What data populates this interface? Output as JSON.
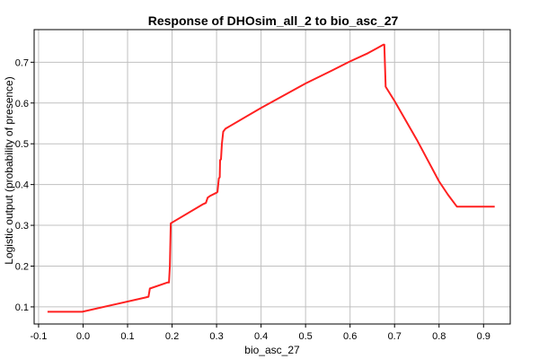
{
  "chart_data": {
    "type": "line",
    "title": "Response of DHOsim_all_2 to bio_asc_27",
    "xlabel": "bio_asc_27",
    "ylabel": "Logistic output (probability of presence)",
    "xlim": [
      -0.11,
      0.96
    ],
    "ylim": [
      0.058,
      0.78
    ],
    "xticks": [
      -0.1,
      0.0,
      0.1,
      0.2,
      0.3,
      0.4,
      0.5,
      0.6,
      0.7,
      0.8,
      0.9
    ],
    "xtick_labels": [
      "-0.1",
      "0.0",
      "0.1",
      "0.2",
      "0.3",
      "0.4",
      "0.5",
      "0.6",
      "0.7",
      "0.8",
      "0.9"
    ],
    "yticks": [
      0.1,
      0.2,
      0.3,
      0.4,
      0.5,
      0.6,
      0.7
    ],
    "ytick_labels": [
      "0.1",
      "0.2",
      "0.3",
      "0.4",
      "0.5",
      "0.6",
      "0.7"
    ],
    "grid": true,
    "series": [
      {
        "color": "#ff2020",
        "x": [
          -0.08,
          -0.002,
          0.14,
          0.147,
          0.149,
          0.15,
          0.19,
          0.193,
          0.195,
          0.197,
          0.27,
          0.276,
          0.28,
          0.285,
          0.3,
          0.302,
          0.305,
          0.307,
          0.308,
          0.31,
          0.312,
          0.315,
          0.32,
          0.4,
          0.5,
          0.56,
          0.6,
          0.64,
          0.66,
          0.675,
          0.677,
          0.68,
          0.7,
          0.75,
          0.8,
          0.82,
          0.84,
          0.925
        ],
        "y": [
          0.088,
          0.088,
          0.123,
          0.125,
          0.138,
          0.145,
          0.16,
          0.16,
          0.2,
          0.305,
          0.352,
          0.355,
          0.368,
          0.372,
          0.38,
          0.382,
          0.415,
          0.418,
          0.46,
          0.462,
          0.5,
          0.53,
          0.537,
          0.588,
          0.648,
          0.68,
          0.702,
          0.722,
          0.734,
          0.743,
          0.743,
          0.64,
          0.605,
          0.51,
          0.408,
          0.375,
          0.346,
          0.346
        ]
      }
    ]
  }
}
